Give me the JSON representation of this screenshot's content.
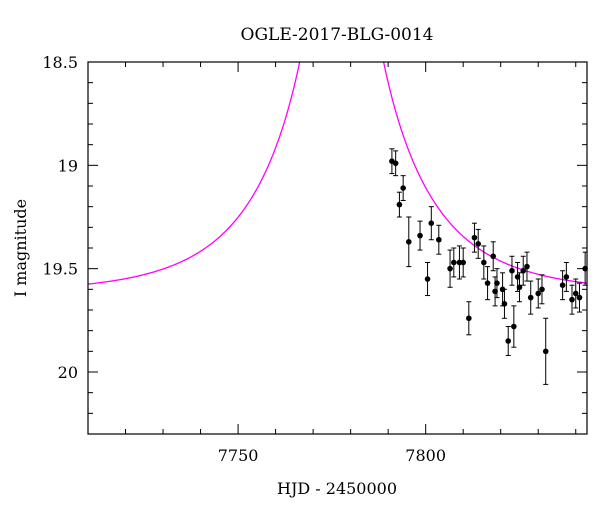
{
  "chart_data": {
    "type": "scatter",
    "title": "OGLE-2017-BLG-0014",
    "xlabel": "HJD - 2450000",
    "ylabel": "I magnitude",
    "xlim": [
      7710,
      7843
    ],
    "ylim": [
      20.3,
      18.5
    ],
    "y_inverted": true,
    "grid": false,
    "x_ticks": [
      7750,
      7800
    ],
    "x_tick_labels": [
      "7750",
      "7800"
    ],
    "y_ticks": [
      18.5,
      19,
      19.5,
      20
    ],
    "y_tick_labels": [
      "18.5",
      "19",
      "19.5",
      "20"
    ],
    "colors": {
      "model": "#ff00ff",
      "data": "#000000"
    },
    "model_curve": {
      "t0": 7777.6,
      "u0": 0.04,
      "tE": 30,
      "I_base": 19.62,
      "x": [
        7710,
        7720,
        7730,
        7740,
        7750,
        7760,
        7765,
        7770,
        7772,
        7784,
        7786,
        7788,
        7790,
        7792,
        7795,
        7800,
        7805,
        7810,
        7820,
        7830,
        7843
      ],
      "y": [
        19.61,
        19.6,
        19.58,
        19.54,
        19.45,
        19.23,
        19.0,
        18.63,
        18.5,
        18.5,
        18.75,
        18.9,
        19.01,
        19.1,
        19.2,
        19.32,
        19.39,
        19.45,
        19.52,
        19.56,
        19.59
      ]
    },
    "series": [
      {
        "x": [
          7791.0,
          7792.0,
          7793.0,
          7794.0,
          7795.5,
          7798.5,
          7800.5,
          7801.5,
          7803.5,
          7806.5,
          7807.5,
          7809.0,
          7810.0,
          7811.5,
          7813.0,
          7814.0,
          7815.5,
          7816.5,
          7818.0,
          7818.5,
          7819.0,
          7820.5,
          7821.0,
          7822.0,
          7823.0,
          7823.5,
          7824.5,
          7825.0,
          7826.0,
          7827.0,
          7828.0,
          7830.0,
          7831.0,
          7832.0,
          7836.5,
          7837.5,
          7839.0,
          7840.0,
          7841.0,
          7842.5
        ],
        "y": [
          18.98,
          18.99,
          19.19,
          19.11,
          19.37,
          19.34,
          19.55,
          19.28,
          19.36,
          19.5,
          19.47,
          19.47,
          19.47,
          19.74,
          19.35,
          19.38,
          19.47,
          19.57,
          19.44,
          19.61,
          19.57,
          19.6,
          19.67,
          19.85,
          19.51,
          19.78,
          19.54,
          19.59,
          19.51,
          19.49,
          19.64,
          19.62,
          19.6,
          19.9,
          19.58,
          19.54,
          19.65,
          19.62,
          19.64,
          19.5
        ],
        "err": [
          0.06,
          0.06,
          0.06,
          0.06,
          0.12,
          0.07,
          0.08,
          0.08,
          0.07,
          0.09,
          0.07,
          0.08,
          0.07,
          0.08,
          0.07,
          0.07,
          0.08,
          0.08,
          0.07,
          0.07,
          0.07,
          0.08,
          0.07,
          0.07,
          0.07,
          0.1,
          0.07,
          0.07,
          0.07,
          0.07,
          0.08,
          0.07,
          0.07,
          0.16,
          0.07,
          0.07,
          0.07,
          0.07,
          0.07,
          0.08
        ]
      }
    ]
  }
}
